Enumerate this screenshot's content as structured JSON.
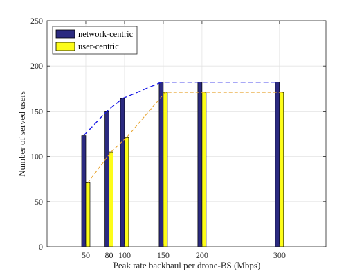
{
  "colors": {
    "network": "#2b2a80",
    "user": "#fdfd1a",
    "network_trend": "#1a1ae6",
    "user_trend": "#e8a530",
    "grid": "#e3e3e3",
    "axis": "#262626"
  },
  "chart_data": {
    "type": "bar",
    "title": "",
    "xlabel": "Peak rate backhaul per drone-BS (Mbps)",
    "ylabel": "Number of served users",
    "xlim": [
      0,
      360
    ],
    "ylim": [
      0,
      250
    ],
    "grid": true,
    "legend_position": "top-left",
    "x": [
      50,
      80,
      100,
      150,
      200,
      300
    ],
    "x_tick_labels": [
      "50",
      "80",
      "100",
      "150",
      "200",
      "300"
    ],
    "y_ticks": [
      0,
      50,
      100,
      150,
      200,
      250
    ],
    "y_tick_labels": [
      "0",
      "50",
      "100",
      "150",
      "200",
      "250"
    ],
    "series": [
      {
        "name": "network-centric",
        "values": [
          123,
          150,
          164,
          182,
          182,
          182
        ]
      },
      {
        "name": "user-centric",
        "values": [
          71,
          105,
          121,
          171,
          171,
          171
        ]
      }
    ],
    "trend_lines": [
      {
        "series": "network-centric",
        "style": "dashed"
      },
      {
        "series": "user-centric",
        "style": "dashed"
      }
    ]
  }
}
